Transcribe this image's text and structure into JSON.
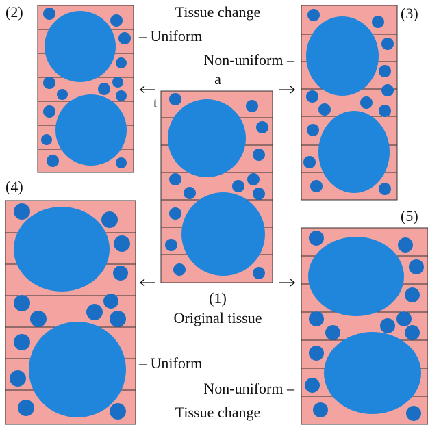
{
  "top_caption": "Tissue change",
  "panel_2": "(2)",
  "panel_3": "(3)",
  "top_uniform": "– Uniform",
  "top_nonuniform": "Non-uniform –",
  "axis_a": "a",
  "axis_t": "t",
  "panel_4": "(4)",
  "panel_5": "(5)",
  "panel_1": "(1)",
  "original": "Original tissue",
  "bottom_uniform": "– Uniform",
  "bottom_nonuniform": "Non-uniform –",
  "bottom_caption": "Tissue change"
}
